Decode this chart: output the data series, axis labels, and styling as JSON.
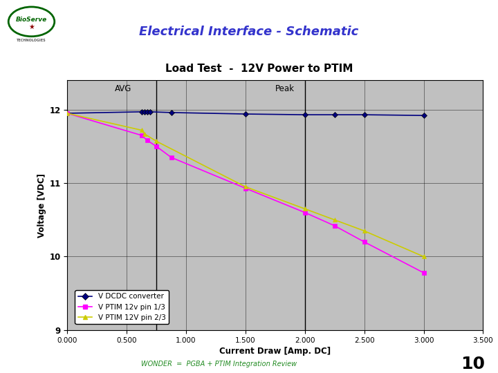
{
  "title": "Load Test  -  12V Power to PTIM",
  "xlabel": "Current Draw [Amp. DC]",
  "ylabel": "Voltage [VDC]",
  "xlim": [
    0.0,
    3.5
  ],
  "ylim": [
    9.0,
    12.4
  ],
  "xticks": [
    0.0,
    0.5,
    1.0,
    1.5,
    2.0,
    2.5,
    3.0,
    3.5
  ],
  "xtick_labels": [
    "0.000",
    "0.500",
    "1.000",
    "1.500",
    "2.000",
    "2.500",
    "3.000",
    "3.500"
  ],
  "yticks": [
    9,
    10,
    11,
    12
  ],
  "plot_bg": "#c0c0c0",
  "page_bg": "#ffffff",
  "header_title": "Electrical Interface - Schematic",
  "footer_text": "WONDER  =  PGBA + PTIM Integration Review",
  "page_number": "10",
  "series": {
    "dcdc": {
      "x": [
        0.0,
        0.625,
        0.65,
        0.675,
        0.7,
        0.875,
        1.5,
        2.0,
        2.25,
        2.5,
        3.0
      ],
      "y": [
        11.95,
        11.97,
        11.97,
        11.97,
        11.97,
        11.96,
        11.94,
        11.93,
        11.93,
        11.93,
        11.92
      ],
      "color": "#000080",
      "marker": "D",
      "label": "V DCDC converter",
      "linewidth": 1.2,
      "markersize": 4
    },
    "ptim13": {
      "x": [
        0.0,
        0.625,
        0.675,
        0.75,
        0.875,
        1.5,
        2.0,
        2.25,
        2.5,
        3.0
      ],
      "y": [
        11.95,
        11.65,
        11.58,
        11.5,
        11.35,
        10.93,
        10.6,
        10.42,
        10.2,
        9.78
      ],
      "color": "#ff00ff",
      "marker": "s",
      "label": "V PTIM 12v pin 1/3",
      "linewidth": 1.2,
      "markersize": 4
    },
    "ptim23": {
      "x": [
        0.0,
        0.625,
        0.65,
        0.75,
        1.5,
        2.0,
        2.25,
        2.5,
        3.0
      ],
      "y": [
        11.95,
        11.72,
        11.67,
        11.57,
        10.95,
        10.65,
        10.5,
        10.35,
        10.0
      ],
      "color": "#cccc00",
      "marker": "^",
      "label": "V PTIM 12V pin 2/3",
      "linewidth": 1.2,
      "markersize": 4
    }
  },
  "vline_avg": 0.75,
  "vline_peak": 2.0,
  "header_color": "#3333cc",
  "teal_stripe_color": "#008080",
  "purple_stripe_color": "#800080"
}
